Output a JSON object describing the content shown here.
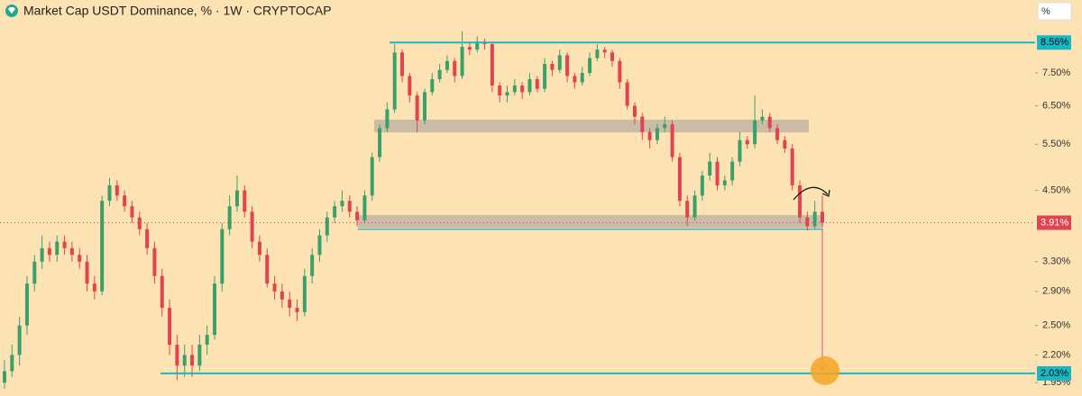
{
  "chart_data": {
    "type": "candlestick",
    "title": "Market Cap USDT Dominance, % · 1W · CRYPTOCAP",
    "scale_unit": "%",
    "log_scale": true,
    "background": "#fde2b3",
    "up_color": "#3aa06a",
    "down_color": "#e0454f",
    "level_color": "#19b6c4",
    "zone_color": "#b3aca3",
    "ylim": [
      1.84,
      10.3
    ],
    "yticks": [
      {
        "value": 7.5,
        "label": "7.50%"
      },
      {
        "value": 6.5,
        "label": "6.50%"
      },
      {
        "value": 5.5,
        "label": "5.50%"
      },
      {
        "value": 4.5,
        "label": "4.50%"
      },
      {
        "value": 3.3,
        "label": "3.30%"
      },
      {
        "value": 2.9,
        "label": "2.90%"
      },
      {
        "value": 2.5,
        "label": "2.50%"
      },
      {
        "value": 2.2,
        "label": "2.20%"
      },
      {
        "value": 1.95,
        "label": "1.95%"
      }
    ],
    "levels": [
      {
        "value": 8.56,
        "label": "8.56%"
      },
      {
        "value": 2.03,
        "label": "2.03%"
      }
    ],
    "last_price": {
      "value": 3.91,
      "label": "3.91%"
    },
    "zones": [
      [
        5.79,
        6.12
      ],
      [
        3.82,
        4.04
      ]
    ],
    "support": 3.8,
    "ohlc": [
      [
        1.95,
        2.15,
        1.9,
        2.05
      ],
      [
        2.05,
        2.3,
        2.0,
        2.2
      ],
      [
        2.2,
        2.6,
        2.1,
        2.5
      ],
      [
        2.5,
        3.1,
        2.4,
        3.0
      ],
      [
        3.0,
        3.4,
        2.9,
        3.3
      ],
      [
        3.3,
        3.7,
        3.2,
        3.5
      ],
      [
        3.5,
        3.6,
        3.3,
        3.4
      ],
      [
        3.4,
        3.7,
        3.3,
        3.6
      ],
      [
        3.6,
        3.7,
        3.4,
        3.5
      ],
      [
        3.5,
        3.6,
        3.3,
        3.4
      ],
      [
        3.4,
        3.5,
        3.2,
        3.3
      ],
      [
        3.3,
        3.4,
        2.9,
        3.0
      ],
      [
        3.0,
        3.1,
        2.8,
        2.9
      ],
      [
        2.9,
        4.4,
        2.85,
        4.3
      ],
      [
        4.3,
        4.75,
        4.2,
        4.6
      ],
      [
        4.6,
        4.7,
        4.3,
        4.4
      ],
      [
        4.4,
        4.5,
        4.1,
        4.2
      ],
      [
        4.2,
        4.3,
        3.9,
        4.0
      ],
      [
        4.0,
        4.1,
        3.7,
        3.8
      ],
      [
        3.8,
        3.9,
        3.4,
        3.5
      ],
      [
        3.5,
        3.6,
        3.0,
        3.1
      ],
      [
        3.1,
        3.2,
        2.6,
        2.7
      ],
      [
        2.7,
        2.8,
        2.2,
        2.3
      ],
      [
        2.3,
        2.4,
        1.97,
        2.1
      ],
      [
        2.1,
        2.3,
        2.0,
        2.2
      ],
      [
        2.2,
        2.3,
        2.0,
        2.1
      ],
      [
        2.1,
        2.4,
        2.05,
        2.3
      ],
      [
        2.3,
        2.5,
        2.2,
        2.4
      ],
      [
        2.4,
        3.1,
        2.35,
        3.0
      ],
      [
        3.0,
        3.9,
        2.9,
        3.8
      ],
      [
        3.8,
        4.4,
        3.7,
        4.2
      ],
      [
        4.2,
        4.8,
        4.1,
        4.5
      ],
      [
        4.5,
        4.6,
        4.0,
        4.1
      ],
      [
        4.1,
        4.2,
        3.5,
        3.6
      ],
      [
        3.6,
        3.7,
        3.3,
        3.4
      ],
      [
        3.4,
        3.5,
        2.95,
        3.0
      ],
      [
        3.0,
        3.1,
        2.8,
        2.9
      ],
      [
        2.9,
        3.0,
        2.7,
        2.8
      ],
      [
        2.8,
        2.9,
        2.6,
        2.7
      ],
      [
        2.7,
        2.8,
        2.55,
        2.65
      ],
      [
        2.65,
        3.2,
        2.6,
        3.1
      ],
      [
        3.1,
        3.5,
        3.0,
        3.4
      ],
      [
        3.4,
        3.8,
        3.3,
        3.7
      ],
      [
        3.7,
        4.1,
        3.6,
        4.0
      ],
      [
        4.0,
        4.3,
        3.9,
        4.2
      ],
      [
        4.2,
        4.5,
        4.1,
        4.3
      ],
      [
        4.3,
        4.4,
        4.0,
        4.1
      ],
      [
        4.1,
        4.2,
        3.85,
        3.95
      ],
      [
        3.95,
        4.5,
        3.9,
        4.4
      ],
      [
        4.4,
        5.3,
        4.3,
        5.2
      ],
      [
        5.2,
        6.0,
        5.1,
        5.9
      ],
      [
        5.9,
        6.6,
        5.8,
        6.4
      ],
      [
        6.4,
        8.5,
        6.3,
        8.2
      ],
      [
        8.2,
        8.3,
        7.2,
        7.4
      ],
      [
        7.4,
        7.5,
        6.6,
        6.8
      ],
      [
        6.8,
        6.9,
        5.8,
        6.1
      ],
      [
        6.1,
        7.0,
        6.0,
        6.9
      ],
      [
        6.9,
        7.5,
        6.8,
        7.3
      ],
      [
        7.3,
        7.8,
        7.2,
        7.6
      ],
      [
        7.6,
        8.1,
        7.5,
        7.9
      ],
      [
        7.9,
        8.0,
        7.2,
        7.4
      ],
      [
        7.4,
        9.0,
        7.3,
        8.4
      ],
      [
        8.4,
        8.6,
        8.1,
        8.3
      ],
      [
        8.3,
        8.8,
        8.2,
        8.6
      ],
      [
        8.6,
        8.7,
        8.3,
        8.5
      ],
      [
        8.5,
        8.6,
        6.9,
        7.1
      ],
      [
        7.1,
        7.2,
        6.6,
        6.8
      ],
      [
        6.8,
        7.1,
        6.6,
        6.9
      ],
      [
        6.9,
        7.3,
        6.8,
        7.1
      ],
      [
        7.1,
        7.2,
        6.7,
        6.9
      ],
      [
        6.9,
        7.5,
        6.8,
        7.3
      ],
      [
        7.3,
        7.4,
        6.9,
        7.0
      ],
      [
        7.0,
        8.0,
        6.9,
        7.8
      ],
      [
        7.8,
        7.9,
        7.4,
        7.6
      ],
      [
        7.6,
        8.3,
        7.5,
        8.1
      ],
      [
        8.1,
        8.2,
        7.2,
        7.4
      ],
      [
        7.4,
        7.5,
        7.0,
        7.2
      ],
      [
        7.2,
        7.7,
        7.1,
        7.5
      ],
      [
        7.5,
        8.2,
        7.4,
        8.0
      ],
      [
        8.0,
        8.5,
        7.9,
        8.3
      ],
      [
        8.3,
        8.4,
        8.0,
        8.2
      ],
      [
        8.2,
        8.3,
        7.7,
        7.9
      ],
      [
        7.9,
        8.0,
        7.0,
        7.2
      ],
      [
        7.2,
        7.3,
        6.4,
        6.5
      ],
      [
        6.5,
        6.6,
        6.0,
        6.2
      ],
      [
        6.2,
        6.3,
        5.6,
        5.8
      ],
      [
        5.8,
        5.9,
        5.4,
        5.6
      ],
      [
        5.6,
        6.0,
        5.5,
        5.9
      ],
      [
        5.9,
        6.2,
        5.8,
        6.0
      ],
      [
        6.0,
        6.1,
        5.1,
        5.2
      ],
      [
        5.2,
        5.3,
        4.2,
        4.3
      ],
      [
        4.3,
        4.4,
        3.85,
        4.0
      ],
      [
        4.0,
        4.5,
        3.95,
        4.4
      ],
      [
        4.4,
        4.9,
        4.3,
        4.8
      ],
      [
        4.8,
        5.3,
        4.7,
        5.1
      ],
      [
        5.1,
        5.2,
        4.5,
        4.6
      ],
      [
        4.6,
        4.8,
        4.5,
        4.7
      ],
      [
        4.7,
        5.2,
        4.6,
        5.1
      ],
      [
        5.1,
        5.8,
        5.0,
        5.6
      ],
      [
        5.6,
        5.7,
        5.4,
        5.5
      ],
      [
        5.5,
        6.8,
        5.4,
        6.1
      ],
      [
        6.1,
        6.4,
        6.0,
        6.2
      ],
      [
        6.2,
        6.3,
        5.8,
        5.9
      ],
      [
        5.9,
        6.0,
        5.5,
        5.6
      ],
      [
        5.6,
        5.7,
        5.3,
        5.4
      ],
      [
        5.4,
        5.5,
        4.5,
        4.6
      ],
      [
        4.6,
        4.7,
        3.9,
        4.0
      ],
      [
        4.0,
        4.1,
        3.78,
        3.85
      ],
      [
        3.85,
        4.3,
        3.8,
        4.1
      ],
      [
        4.1,
        4.4,
        3.85,
        3.91
      ]
    ]
  }
}
